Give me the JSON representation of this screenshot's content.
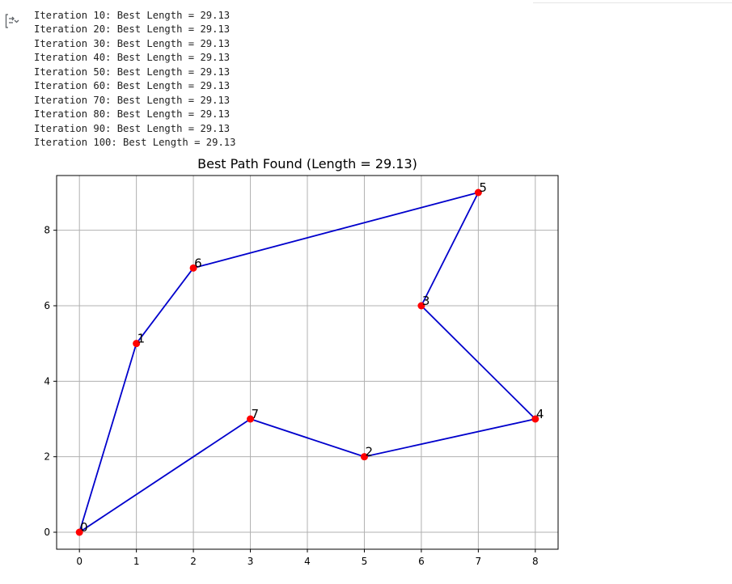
{
  "output_log": [
    "Iteration 10: Best Length = 29.13",
    "Iteration 20: Best Length = 29.13",
    "Iteration 30: Best Length = 29.13",
    "Iteration 40: Best Length = 29.13",
    "Iteration 50: Best Length = 29.13",
    "Iteration 60: Best Length = 29.13",
    "Iteration 70: Best Length = 29.13",
    "Iteration 80: Best Length = 29.13",
    "Iteration 90: Best Length = 29.13",
    "Iteration 100: Best Length = 29.13"
  ],
  "toolbar": {
    "toggle_icon": "output-toggle-icon"
  },
  "chart_data": {
    "type": "line",
    "title": "Best Path Found (Length = 29.13)",
    "xlabel": "",
    "ylabel": "",
    "xlim": [
      -0.4,
      8.4
    ],
    "ylim": [
      -0.45,
      9.45
    ],
    "xticks": [
      0,
      1,
      2,
      3,
      4,
      5,
      6,
      7,
      8
    ],
    "yticks": [
      0,
      2,
      4,
      6,
      8
    ],
    "grid": true,
    "points": [
      {
        "label": "0",
        "x": 0,
        "y": 0
      },
      {
        "label": "1",
        "x": 1,
        "y": 5
      },
      {
        "label": "2",
        "x": 5,
        "y": 2
      },
      {
        "label": "3",
        "x": 6,
        "y": 6
      },
      {
        "label": "4",
        "x": 8,
        "y": 3
      },
      {
        "label": "5",
        "x": 7,
        "y": 9
      },
      {
        "label": "6",
        "x": 2,
        "y": 7
      },
      {
        "label": "7",
        "x": 3,
        "y": 3
      }
    ],
    "path_order": [
      0,
      1,
      6,
      5,
      3,
      4,
      2,
      7,
      0
    ],
    "line_color": "#0000cc",
    "point_color": "#ff0000",
    "grid_color": "#b0b0b0"
  }
}
